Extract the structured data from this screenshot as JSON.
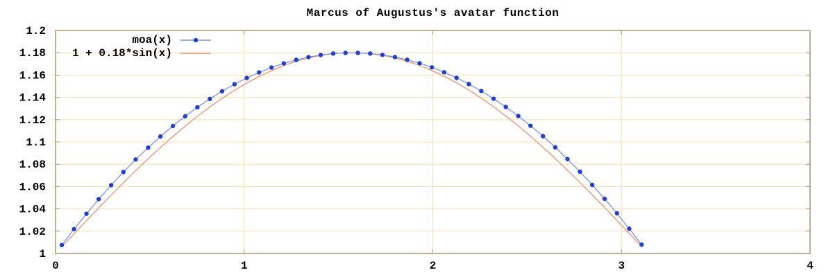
{
  "page": {
    "background": "#ffffff"
  },
  "chart_data": {
    "type": "line",
    "title": "Marcus of Augustus's avatar function",
    "xlabel": "",
    "ylabel": "",
    "xlim": [
      0,
      4
    ],
    "ylim": [
      1,
      1.2
    ],
    "xtick_values": [
      0,
      1,
      2,
      3,
      4
    ],
    "xtick_labels": [
      "0",
      "1",
      "2",
      "3",
      "4"
    ],
    "ytick_values": [
      1,
      1.02,
      1.04,
      1.06,
      1.08,
      1.1,
      1.12,
      1.14,
      1.16,
      1.18,
      1.2
    ],
    "ytick_labels": [
      "1",
      "1.02",
      "1.04",
      "1.06",
      "1.08",
      "1.1",
      "1.12",
      "1.14",
      "1.16",
      "1.18",
      "1.2"
    ],
    "grid": {
      "show": true,
      "color": "#fddfa8"
    },
    "border_color": "#ab9770",
    "tick_color": "#ab9770",
    "text_color": "#000000",
    "legend": {
      "position": "top-left-inside",
      "entries": [
        {
          "label": "moa(x)",
          "style": "linespoints"
        },
        {
          "label": "1 + 0.18*sin(x)",
          "style": "line"
        }
      ]
    },
    "series": [
      {
        "name": "moa(x)",
        "type": "linespoints",
        "line_color": "#7b93e8",
        "point_color": "#2340cc",
        "point_radius": 3.2,
        "x": [
          0.033,
          0.098,
          0.164,
          0.229,
          0.295,
          0.36,
          0.425,
          0.491,
          0.556,
          0.622,
          0.687,
          0.752,
          0.818,
          0.883,
          0.949,
          1.014,
          1.079,
          1.145,
          1.21,
          1.276,
          1.341,
          1.406,
          1.472,
          1.537,
          1.603,
          1.668,
          1.733,
          1.799,
          1.864,
          1.93,
          1.995,
          2.06,
          2.126,
          2.191,
          2.257,
          2.322,
          2.387,
          2.453,
          2.518,
          2.584,
          2.649,
          2.714,
          2.78,
          2.845,
          2.911,
          2.976,
          3.041,
          3.107
        ],
        "y": [
          1.0075,
          1.0218,
          1.0356,
          1.0487,
          1.0612,
          1.0731,
          1.0843,
          1.0949,
          1.1049,
          1.1143,
          1.123,
          1.1311,
          1.1386,
          1.1455,
          1.1518,
          1.1574,
          1.1624,
          1.1668,
          1.1705,
          1.1736,
          1.1761,
          1.178,
          1.1793,
          1.1799,
          1.1799,
          1.1793,
          1.1781,
          1.1762,
          1.1737,
          1.1706,
          1.1669,
          1.1625,
          1.1575,
          1.1519,
          1.1457,
          1.1388,
          1.1314,
          1.1233,
          1.1145,
          1.1052,
          1.0952,
          1.0846,
          1.0734,
          1.0615,
          1.049,
          1.036,
          1.0222,
          1.0079
        ]
      },
      {
        "name": "1 + 0.18*sin(x)",
        "type": "line",
        "color": "#ec9370",
        "function": {
          "expr": "1 + 0.18*sin(x)",
          "offset": 1,
          "amplitude": 0.18,
          "fn": "sin"
        },
        "x_start": 0.033,
        "x_end": 3.107,
        "samples": 140
      }
    ]
  }
}
